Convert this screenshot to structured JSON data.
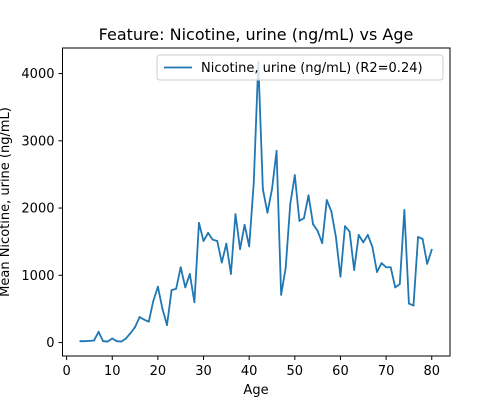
{
  "chart_data": {
    "type": "line",
    "title": "Feature: Nicotine, urine (ng/mL) vs Age",
    "xlabel": "Age",
    "ylabel": "Mean Nicotine, urine (ng/mL)",
    "xlim": [
      -0.9,
      84.0
    ],
    "ylim": [
      -200,
      4380
    ],
    "xticks": [
      0,
      10,
      20,
      30,
      40,
      50,
      60,
      70,
      80
    ],
    "yticks": [
      0,
      1000,
      2000,
      3000,
      4000
    ],
    "grid": false,
    "legend_position": "top-right",
    "series": [
      {
        "name": "Nicotine, urine (ng/mL) (R2=0.24)",
        "color": "#1f77b4",
        "x": [
          3,
          4,
          5,
          6,
          7,
          8,
          9,
          10,
          11,
          12,
          13,
          14,
          15,
          16,
          17,
          18,
          19,
          20,
          21,
          22,
          23,
          24,
          25,
          26,
          27,
          28,
          29,
          30,
          31,
          32,
          33,
          34,
          35,
          36,
          37,
          38,
          39,
          40,
          41,
          42,
          43,
          44,
          45,
          46,
          47,
          48,
          49,
          50,
          51,
          52,
          53,
          54,
          55,
          56,
          57,
          58,
          59,
          60,
          61,
          62,
          63,
          64,
          65,
          66,
          67,
          68,
          69,
          70,
          71,
          72,
          73,
          74,
          75,
          76,
          77,
          78,
          79,
          80
        ],
        "values": [
          20,
          20,
          25,
          30,
          160,
          20,
          15,
          60,
          20,
          15,
          60,
          140,
          230,
          380,
          340,
          310,
          620,
          830,
          500,
          260,
          780,
          800,
          1120,
          820,
          1020,
          600,
          1780,
          1510,
          1630,
          1530,
          1510,
          1190,
          1470,
          1020,
          1910,
          1390,
          1750,
          1430,
          2370,
          4170,
          2280,
          1930,
          2280,
          2850,
          710,
          1110,
          2060,
          2490,
          1810,
          1850,
          2190,
          1760,
          1660,
          1480,
          2120,
          1950,
          1570,
          980,
          1730,
          1650,
          1080,
          1600,
          1490,
          1600,
          1420,
          1050,
          1180,
          1120,
          1120,
          820,
          870,
          1970,
          580,
          550,
          1570,
          1540,
          1170,
          1380
        ]
      }
    ]
  }
}
